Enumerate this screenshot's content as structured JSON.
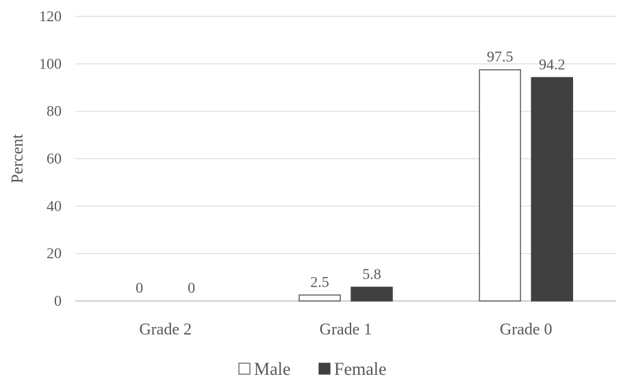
{
  "chart_data": {
    "type": "bar",
    "title": "",
    "xlabel": "",
    "ylabel": "Percent",
    "ylim": [
      0,
      120
    ],
    "yticks": [
      0,
      20,
      40,
      60,
      80,
      100,
      120
    ],
    "grid": true,
    "legend_position": "bottom",
    "categories": [
      "Grade 2",
      "Grade 1",
      "Grade 0"
    ],
    "series": [
      {
        "name": "Male",
        "values": [
          0,
          2.5,
          97.5
        ],
        "labels": [
          "0",
          "2.5",
          "97.5"
        ],
        "color": "#ffffff",
        "stroke": "#595959"
      },
      {
        "name": "Female",
        "values": [
          0,
          5.8,
          94.2
        ],
        "labels": [
          "0",
          "5.8",
          "94.2"
        ],
        "color": "#404040",
        "stroke": "#404040"
      }
    ]
  }
}
